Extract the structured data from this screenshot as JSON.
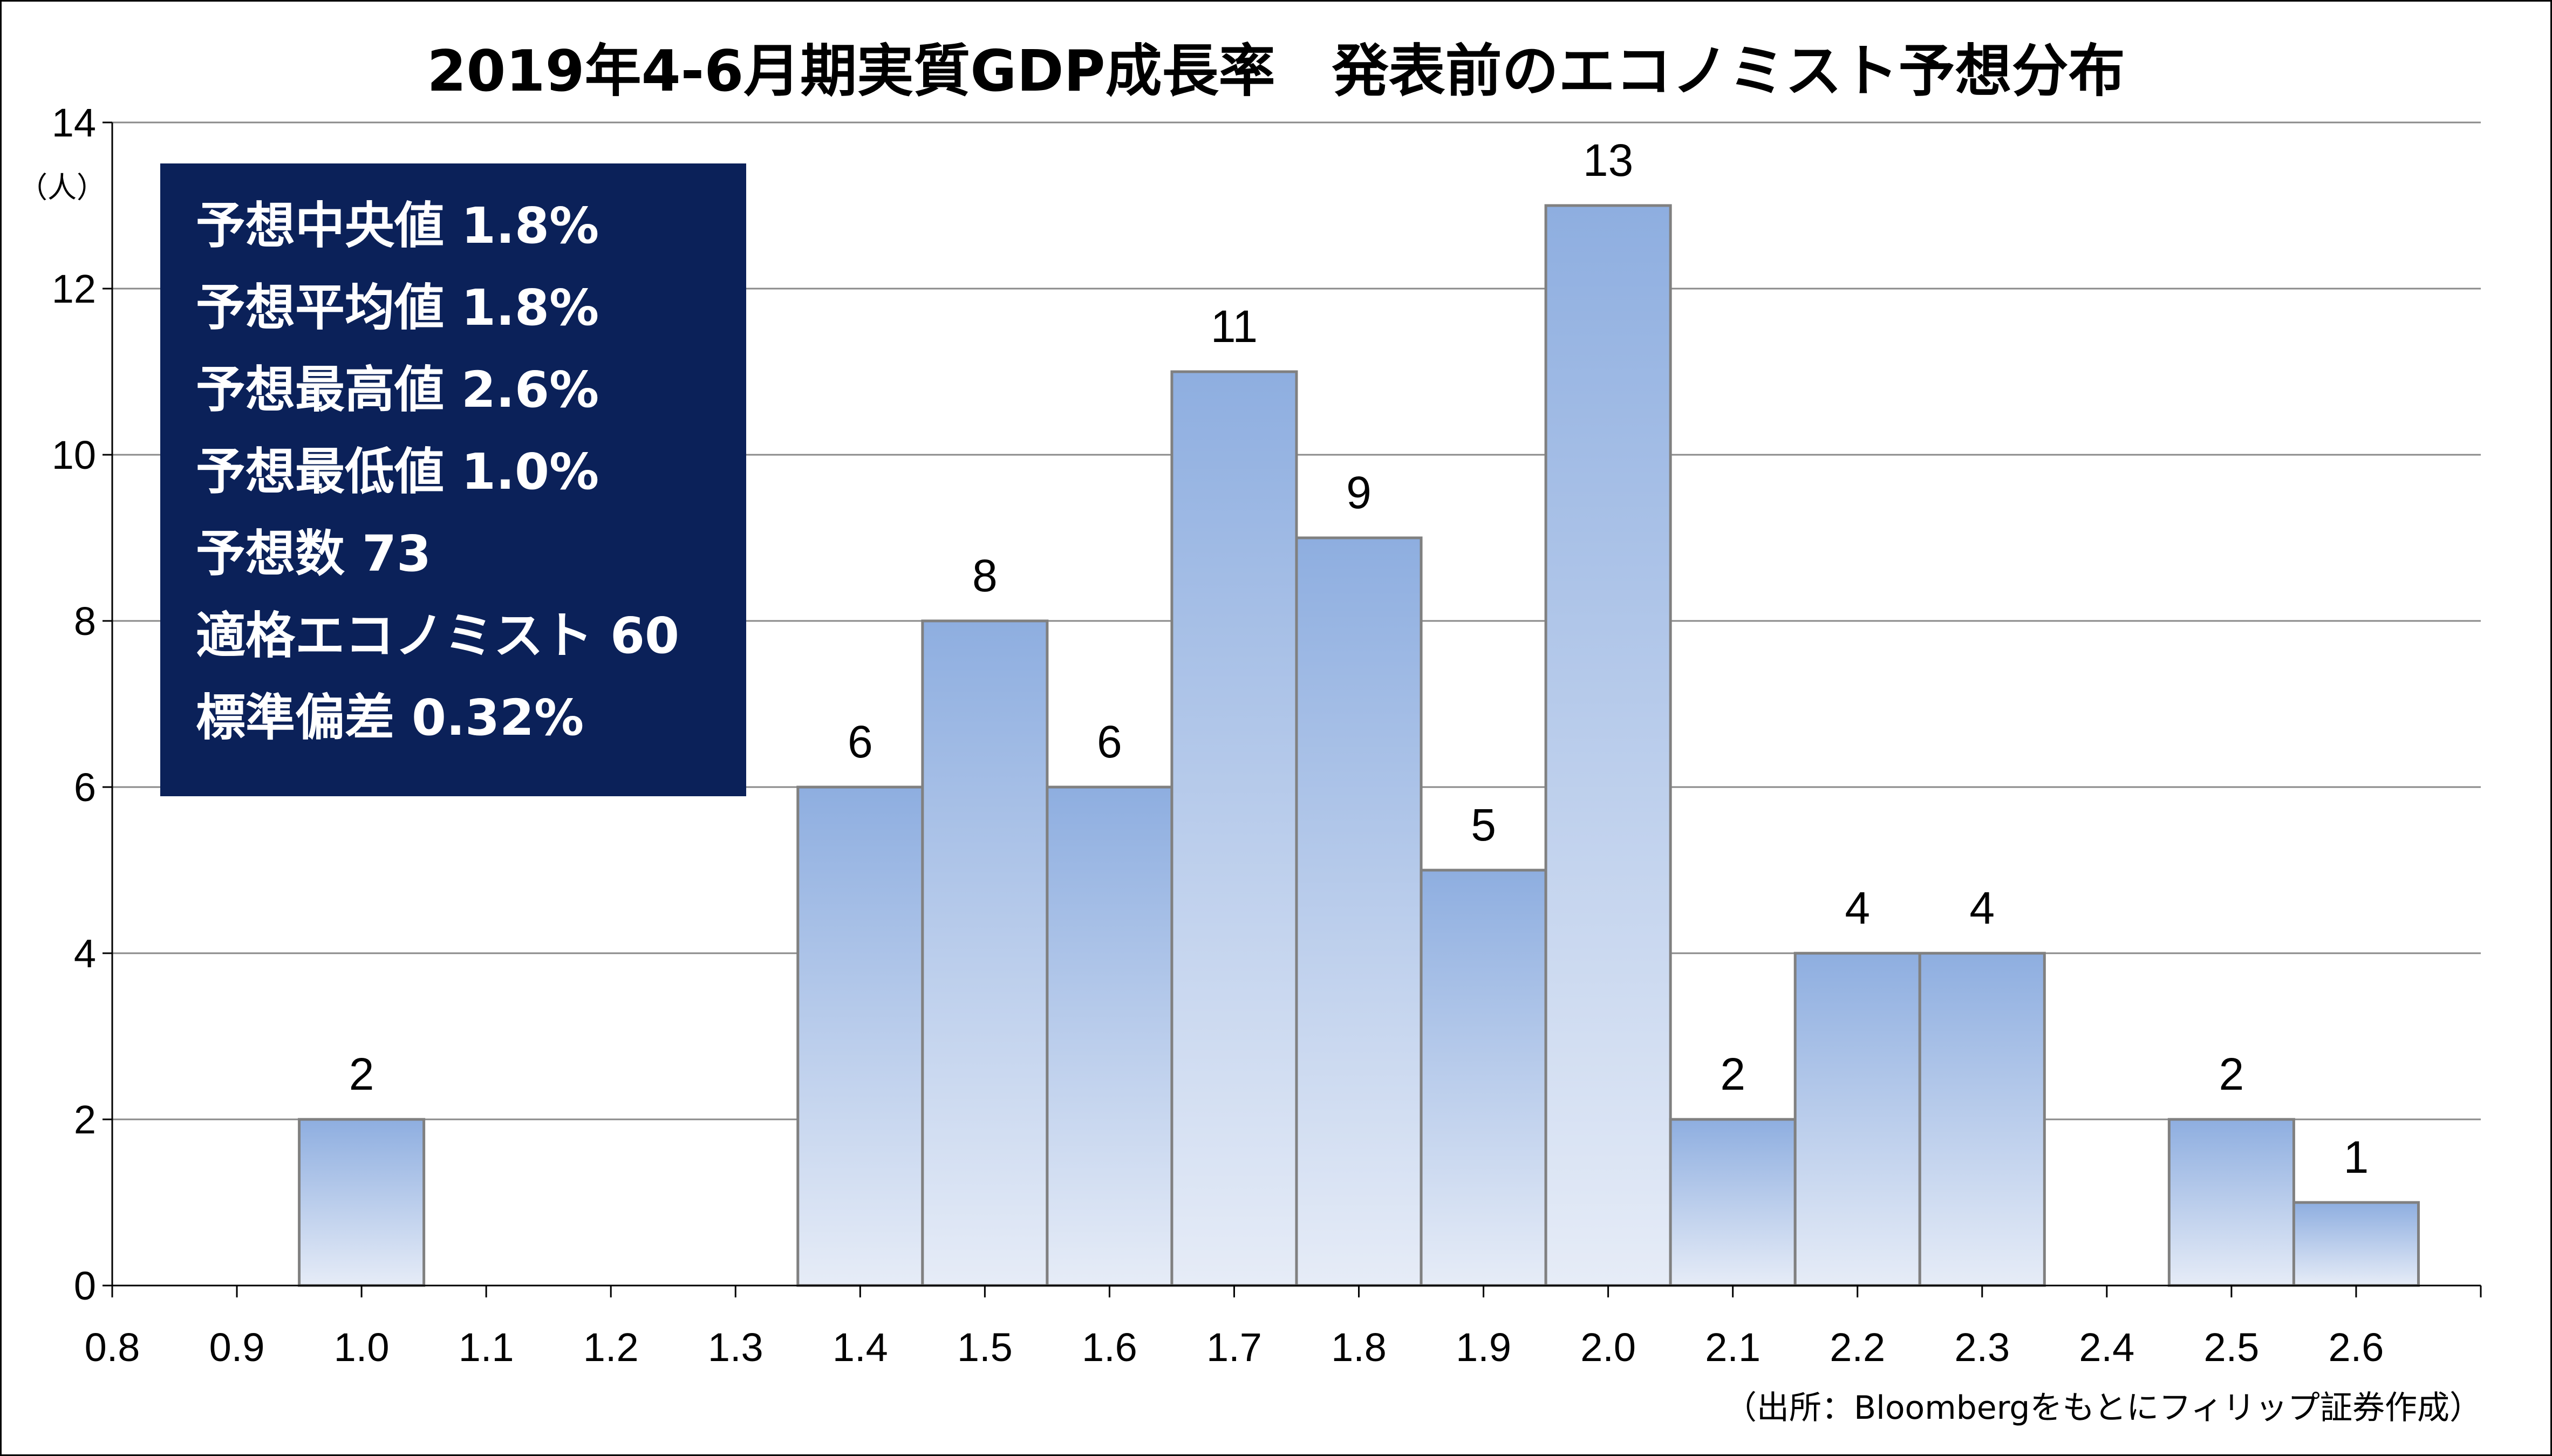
{
  "colors": {
    "bar_top": "#8eaee0",
    "bar_bottom": "#e6ecf7",
    "bar_stroke": "#808080",
    "grid": "#8a8a8a",
    "stats_bg": "#0b2159",
    "stats_text": "#ffffff"
  },
  "chart_data": {
    "type": "bar",
    "title": "2019年4-6月期実質GDP成長率　発表前のエコノミスト予想分布",
    "y_unit": "（人）",
    "source": "（出所：Bloombergをもとにフィリップ証券作成）",
    "x_ticks": [
      "0.8",
      "0.9",
      "1.0",
      "1.1",
      "1.2",
      "1.3",
      "1.4",
      "1.5",
      "1.6",
      "1.7",
      "1.8",
      "1.9",
      "2.0",
      "2.1",
      "2.2",
      "2.3",
      "2.4",
      "2.5",
      "2.6"
    ],
    "y_ticks": [
      "0",
      "2",
      "4",
      "6",
      "8",
      "10",
      "12",
      "14"
    ],
    "ylim": [
      0,
      14
    ],
    "xlim": [
      0.8,
      2.7
    ],
    "grid": true,
    "legend": "none",
    "bars": [
      {
        "x": "1.0",
        "value": 2
      },
      {
        "x": "1.4",
        "value": 6
      },
      {
        "x": "1.5",
        "value": 8
      },
      {
        "x": "1.6",
        "value": 6
      },
      {
        "x": "1.7",
        "value": 11
      },
      {
        "x": "1.8",
        "value": 9
      },
      {
        "x": "1.9",
        "value": 5
      },
      {
        "x": "2.0",
        "value": 13
      },
      {
        "x": "2.1",
        "value": 2
      },
      {
        "x": "2.2",
        "value": 4
      },
      {
        "x": "2.3",
        "value": 4
      },
      {
        "x": "2.5",
        "value": 2
      },
      {
        "x": "2.6",
        "value": 1
      }
    ]
  },
  "stats_box": {
    "lines": [
      "予想中央値 1.8%",
      "予想平均値 1.8%",
      "予想最高値 2.6%",
      "予想最低値 1.0%",
      "予想数 73",
      "適格エコノミスト 60",
      "標準偏差 0.32%"
    ]
  }
}
